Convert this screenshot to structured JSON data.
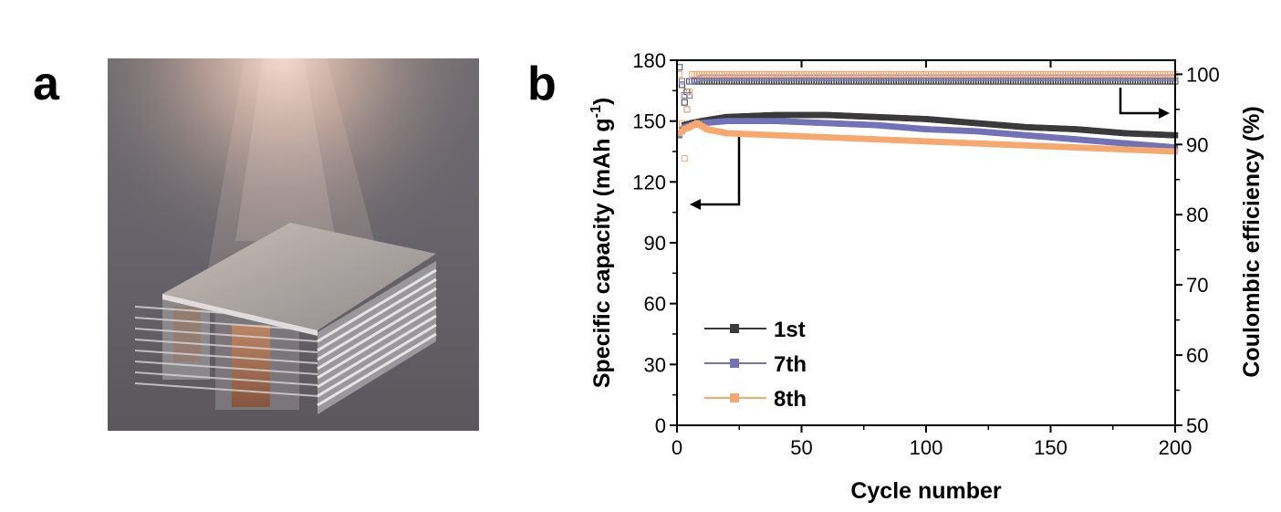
{
  "panels": {
    "a_label": "a",
    "b_label": "b"
  },
  "photo": {
    "subject": "stacked-pouch-battery-cell"
  },
  "colors": {
    "s1": "#3a3a3a",
    "s7": "#7272b8",
    "s8": "#f7a86f",
    "axis": "#000000"
  },
  "chart_data": {
    "type": "scatter",
    "title": "",
    "xlabel": "Cycle number",
    "ylabel_left_main": "Specific capacity (mAh g",
    "ylabel_left_sup": "-1",
    "ylabel_left_end": ")",
    "ylabel_right": "Coulombic efficiency (%)",
    "xlim": [
      0,
      200
    ],
    "ylim_left": [
      0,
      180
    ],
    "ylim_right": [
      50,
      102
    ],
    "x_ticks": [
      0,
      50,
      100,
      150,
      200
    ],
    "y_left_ticks": [
      0,
      30,
      60,
      90,
      120,
      150,
      180
    ],
    "y_right_ticks": [
      50,
      60,
      70,
      80,
      90,
      100
    ],
    "legend_position": "bottom-left",
    "grid": false,
    "series": [
      {
        "name": "1st",
        "axis": "left",
        "color_key": "s1",
        "points": [
          [
            1,
            143
          ],
          [
            3,
            148
          ],
          [
            6,
            149
          ],
          [
            10,
            150
          ],
          [
            20,
            152
          ],
          [
            40,
            153
          ],
          [
            60,
            153
          ],
          [
            80,
            152
          ],
          [
            100,
            151
          ],
          [
            120,
            149
          ],
          [
            140,
            147
          ],
          [
            160,
            146
          ],
          [
            180,
            144
          ],
          [
            200,
            143
          ]
        ]
      },
      {
        "name": "7th",
        "axis": "left",
        "color_key": "s7",
        "points": [
          [
            1,
            143
          ],
          [
            3,
            147
          ],
          [
            6,
            148
          ],
          [
            10,
            149
          ],
          [
            20,
            150
          ],
          [
            40,
            150
          ],
          [
            60,
            149
          ],
          [
            80,
            148
          ],
          [
            100,
            146
          ],
          [
            120,
            145
          ],
          [
            140,
            143
          ],
          [
            160,
            141
          ],
          [
            180,
            139
          ],
          [
            200,
            137
          ]
        ]
      },
      {
        "name": "8th",
        "axis": "left",
        "color_key": "s8",
        "points": [
          [
            1,
            144
          ],
          [
            3,
            146
          ],
          [
            5,
            147
          ],
          [
            8,
            149
          ],
          [
            12,
            146
          ],
          [
            20,
            144
          ],
          [
            40,
            143
          ],
          [
            60,
            142
          ],
          [
            80,
            141
          ],
          [
            100,
            140
          ],
          [
            120,
            139
          ],
          [
            140,
            138
          ],
          [
            160,
            137
          ],
          [
            180,
            136
          ],
          [
            200,
            135
          ]
        ]
      },
      {
        "name": "",
        "axis": "right",
        "color_key": "s1",
        "points": [
          [
            1,
            101
          ],
          [
            3,
            96
          ],
          [
            5,
            99
          ],
          [
            10,
            99
          ],
          [
            50,
            99
          ],
          [
            100,
            99
          ],
          [
            150,
            99
          ],
          [
            200,
            99
          ]
        ]
      },
      {
        "name": "",
        "axis": "right",
        "color_key": "s7",
        "points": [
          [
            1,
            101
          ],
          [
            2,
            99
          ],
          [
            4,
            95
          ],
          [
            6,
            99
          ],
          [
            10,
            99.5
          ],
          [
            50,
            99.5
          ],
          [
            100,
            99.5
          ],
          [
            150,
            99.5
          ],
          [
            200,
            99.5
          ]
        ]
      },
      {
        "name": "",
        "axis": "right",
        "color_key": "s8",
        "points": [
          [
            1,
            100
          ],
          [
            2,
            93
          ],
          [
            3,
            88
          ],
          [
            4,
            95
          ],
          [
            6,
            100
          ],
          [
            10,
            100
          ],
          [
            50,
            100
          ],
          [
            100,
            100
          ],
          [
            150,
            100
          ],
          [
            200,
            100
          ]
        ]
      }
    ]
  }
}
